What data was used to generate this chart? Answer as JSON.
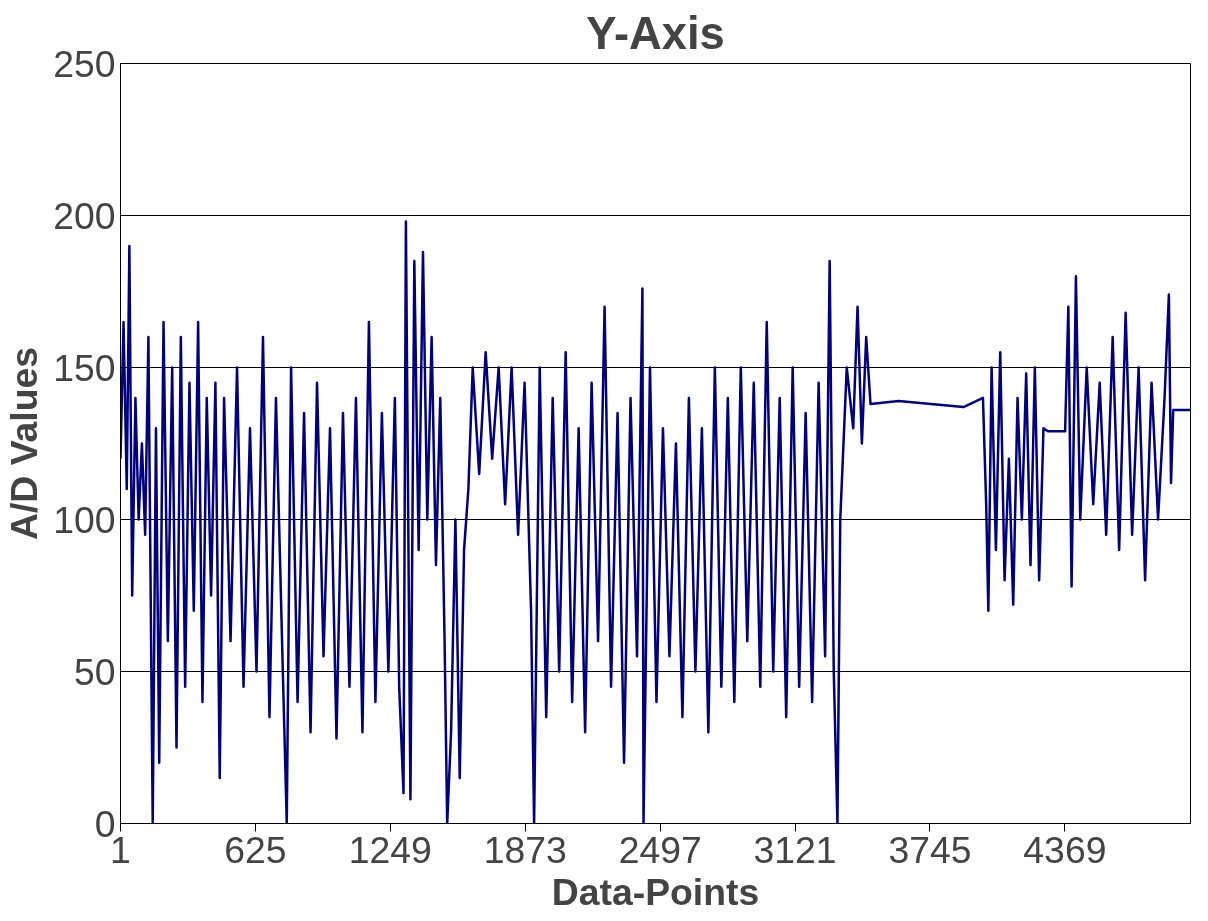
{
  "chart_data": {
    "type": "line",
    "title": "Y-Axis",
    "xlabel": "Data-Points",
    "ylabel": "A/D Values",
    "xlim": [
      1,
      4950
    ],
    "xticks": [
      1,
      625,
      1249,
      1873,
      2497,
      3121,
      3745,
      4369
    ],
    "ylim": [
      0,
      250
    ],
    "yticks": [
      0,
      50,
      100,
      150,
      200,
      250
    ],
    "grid": "y",
    "marker": "none",
    "line_style": "solid",
    "series": [
      {
        "color": "#000080",
        "x": [
          1,
          15,
          30,
          42,
          55,
          70,
          85,
          100,
          115,
          130,
          150,
          165,
          180,
          200,
          220,
          240,
          260,
          280,
          300,
          320,
          340,
          360,
          380,
          400,
          420,
          440,
          460,
          480,
          510,
          540,
          570,
          600,
          630,
          660,
          690,
          720,
          750,
          770,
          790,
          820,
          850,
          880,
          910,
          940,
          970,
          1000,
          1030,
          1060,
          1090,
          1120,
          1150,
          1180,
          1210,
          1240,
          1270,
          1290,
          1310,
          1321,
          1342,
          1360,
          1380,
          1400,
          1420,
          1440,
          1460,
          1480,
          1500,
          1512,
          1530,
          1550,
          1570,
          1590,
          1610,
          1630,
          1660,
          1690,
          1720,
          1750,
          1780,
          1810,
          1840,
          1870,
          1900,
          1914,
          1940,
          1970,
          2000,
          2030,
          2060,
          2090,
          2120,
          2150,
          2180,
          2210,
          2240,
          2270,
          2300,
          2330,
          2360,
          2390,
          2415,
          2420,
          2450,
          2480,
          2510,
          2540,
          2570,
          2600,
          2630,
          2660,
          2690,
          2720,
          2750,
          2780,
          2810,
          2840,
          2870,
          2900,
          2930,
          2960,
          2990,
          3020,
          3050,
          3080,
          3110,
          3140,
          3170,
          3200,
          3230,
          3260,
          3281,
          3300,
          3317,
          3330,
          3360,
          3390,
          3410,
          3430,
          3450,
          3470,
          3600,
          3750,
          3900,
          3990,
          4005,
          4015,
          4030,
          4050,
          4070,
          4090,
          4110,
          4130,
          4150,
          4170,
          4190,
          4210,
          4230,
          4250,
          4270,
          4290,
          4370,
          4385,
          4400,
          4420,
          4440,
          4470,
          4500,
          4530,
          4560,
          4590,
          4620,
          4650,
          4680,
          4710,
          4740,
          4770,
          4800,
          4830,
          4850,
          4860,
          4870,
          4950
        ],
        "values": [
          120,
          165,
          110,
          190,
          75,
          140,
          100,
          125,
          95,
          160,
          0,
          130,
          20,
          165,
          60,
          150,
          25,
          160,
          45,
          145,
          70,
          165,
          40,
          140,
          75,
          145,
          15,
          140,
          60,
          150,
          45,
          130,
          50,
          160,
          35,
          140,
          55,
          0,
          150,
          40,
          135,
          30,
          145,
          55,
          130,
          28,
          135,
          45,
          140,
          30,
          165,
          40,
          135,
          50,
          140,
          45,
          10,
          198,
          8,
          185,
          90,
          188,
          100,
          160,
          85,
          140,
          60,
          0,
          30,
          100,
          15,
          90,
          110,
          150,
          115,
          155,
          120,
          150,
          105,
          150,
          95,
          145,
          70,
          0,
          150,
          35,
          140,
          50,
          155,
          40,
          130,
          30,
          145,
          60,
          170,
          45,
          135,
          20,
          140,
          55,
          176,
          0,
          150,
          40,
          130,
          55,
          125,
          35,
          140,
          50,
          130,
          30,
          150,
          45,
          140,
          40,
          150,
          60,
          145,
          45,
          165,
          50,
          140,
          35,
          150,
          45,
          135,
          40,
          145,
          55,
          185,
          50,
          0,
          100,
          150,
          130,
          170,
          125,
          160,
          138,
          139,
          138,
          137,
          140,
          105,
          70,
          150,
          90,
          155,
          80,
          120,
          72,
          140,
          100,
          148,
          85,
          150,
          80,
          130,
          129,
          129,
          170,
          78,
          180,
          100,
          150,
          105,
          145,
          95,
          160,
          90,
          168,
          95,
          150,
          80,
          145,
          100,
          140,
          174,
          112,
          136,
          136
        ]
      }
    ]
  }
}
